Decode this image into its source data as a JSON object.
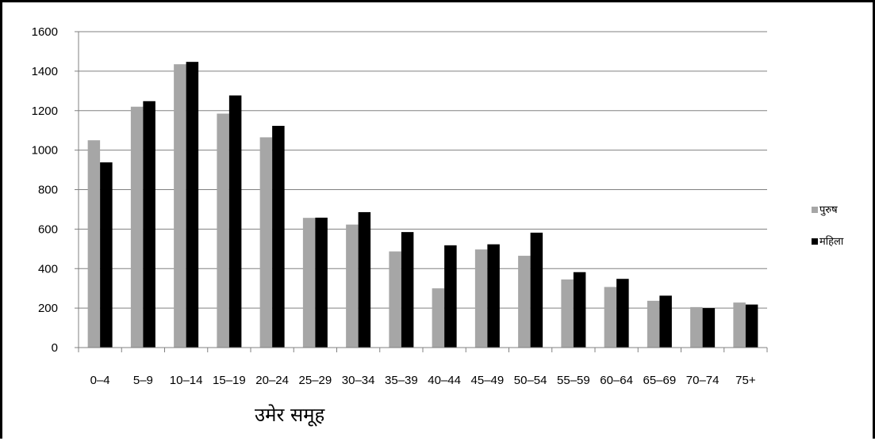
{
  "chart_data": {
    "type": "bar",
    "categories": [
      "0–4",
      "5–9",
      "10–14",
      "15–19",
      "20–24",
      "25–29",
      "30–34",
      "35–39",
      "40–44",
      "45–49",
      "50–54",
      "55–59",
      "60–64",
      "65–69",
      "70–74",
      "75+"
    ],
    "series": [
      {
        "name": "पुरुष",
        "color": "#a6a6a6",
        "values": [
          1050,
          1220,
          1435,
          1185,
          1065,
          657,
          623,
          487,
          300,
          497,
          465,
          345,
          307,
          237,
          205,
          228
        ]
      },
      {
        "name": "महिला",
        "color": "#000000",
        "values": [
          938,
          1248,
          1447,
          1277,
          1123,
          658,
          686,
          585,
          518,
          523,
          582,
          382,
          348,
          263,
          200,
          218
        ]
      }
    ],
    "xlabel": "उमेर समूह",
    "ylim": [
      0,
      1600
    ],
    "yticks": [
      0,
      200,
      400,
      600,
      800,
      1000,
      1200,
      1400,
      1600
    ],
    "grid": true,
    "legend": "right"
  }
}
